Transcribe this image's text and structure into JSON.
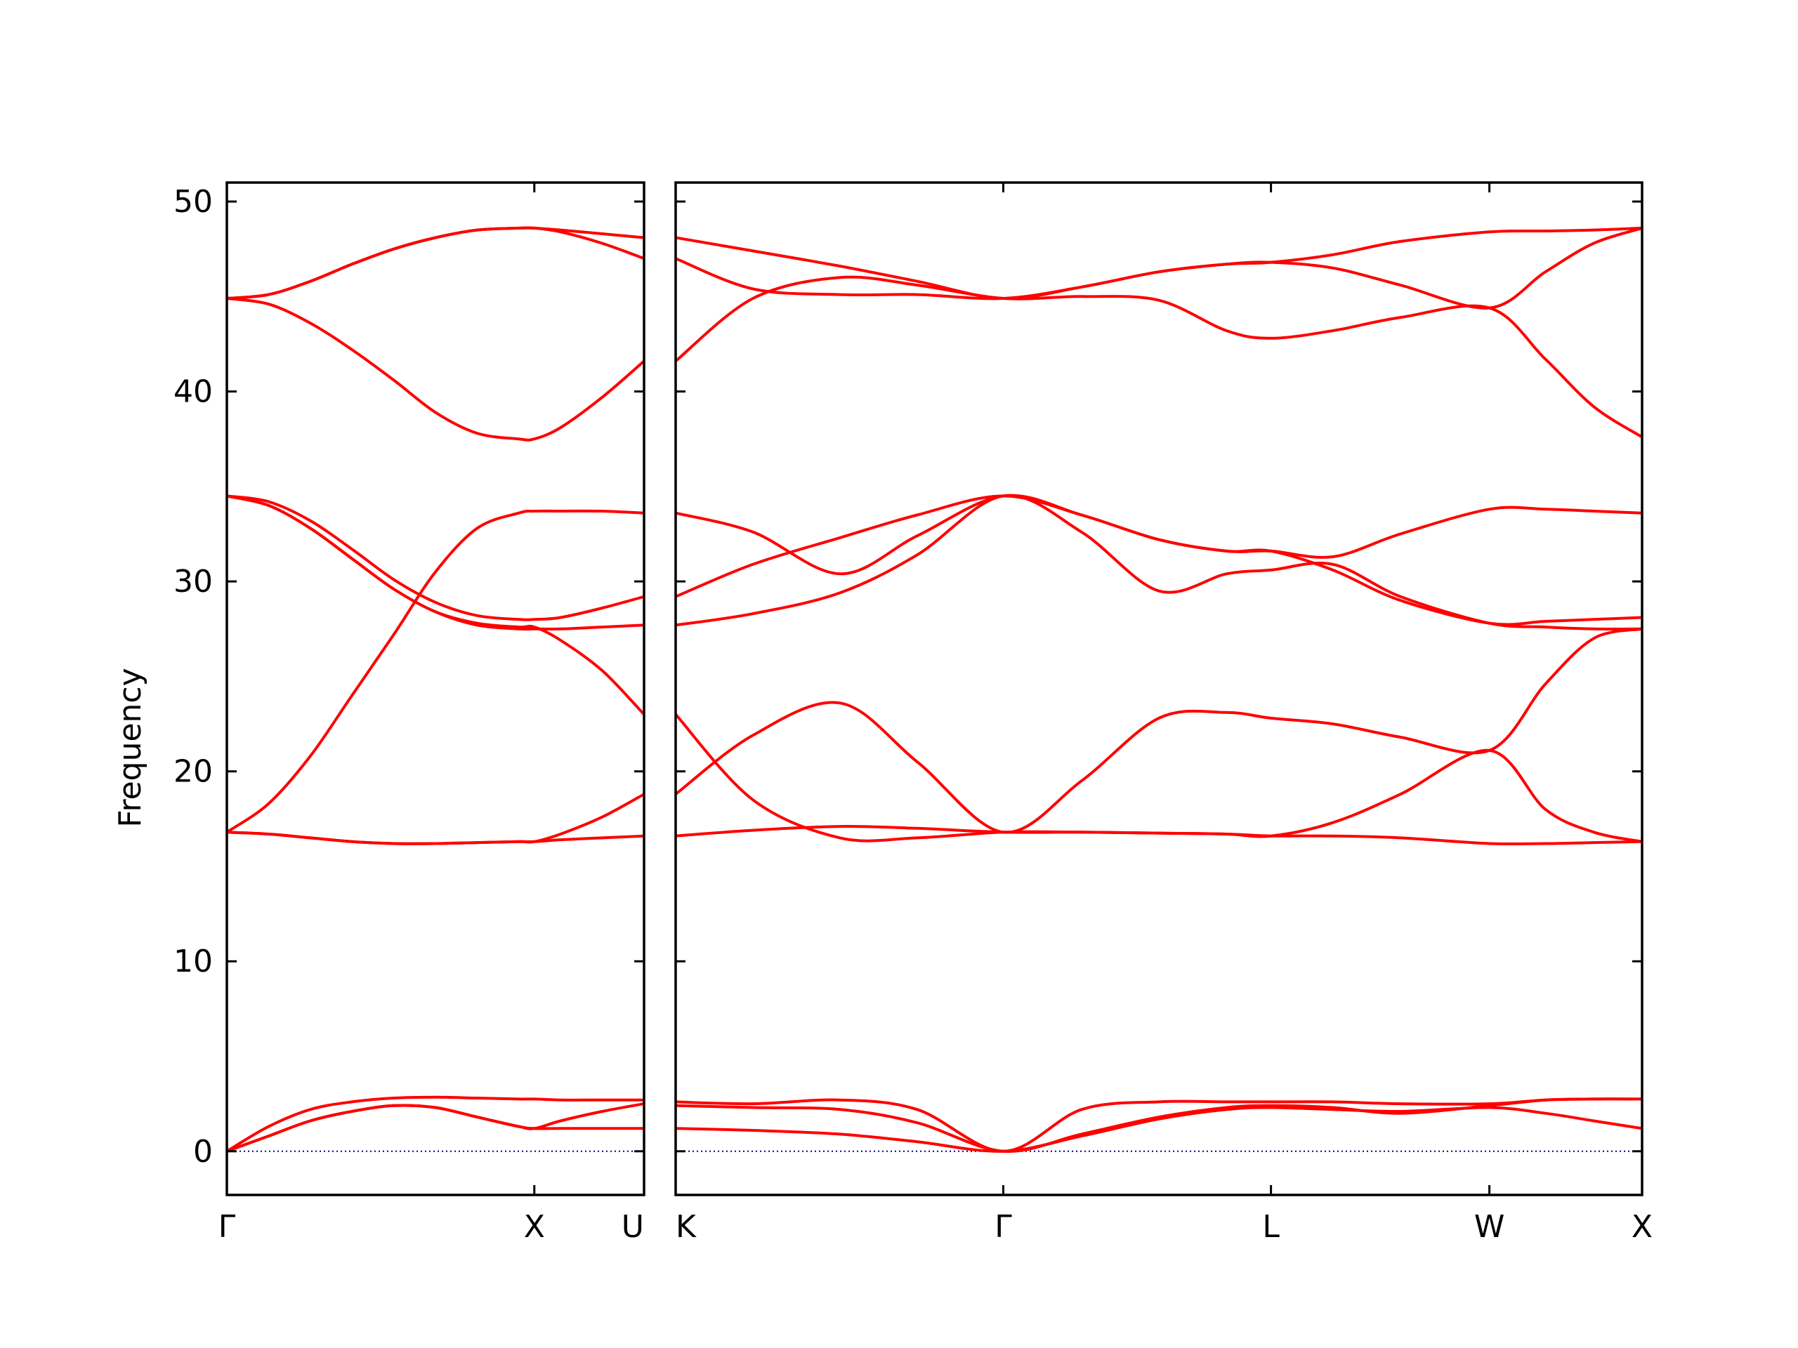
{
  "chart_data": {
    "type": "line",
    "ylabel": "Frequency",
    "ylim": [
      -2.3,
      51.0
    ],
    "yticks": [
      0,
      10,
      20,
      30,
      40,
      50
    ],
    "grid": false,
    "colors": {
      "band": "#ff0000",
      "zero": "#00008b"
    },
    "panels": [
      {
        "xlim": [
          0.0,
          1.0
        ],
        "xticks": [
          {
            "pos": 0.0,
            "label": "Γ"
          },
          {
            "pos": 0.737,
            "label": "X"
          },
          {
            "pos": 1.0,
            "label": "U"
          }
        ],
        "x": [
          0.0,
          0.1,
          0.2,
          0.3,
          0.4,
          0.5,
          0.6,
          0.7,
          0.737,
          0.8,
          0.9,
          1.0
        ],
        "series": [
          {
            "values": [
              0.0,
              0.8,
              1.6,
              2.1,
              2.4,
              2.3,
              1.8,
              1.3,
              1.2,
              1.2,
              1.2,
              1.2
            ]
          },
          {
            "values": [
              0.0,
              1.3,
              2.2,
              2.6,
              2.8,
              2.85,
              2.8,
              2.75,
              2.75,
              2.7,
              2.7,
              2.7
            ]
          },
          {
            "values": [
              0.0,
              0.8,
              1.6,
              2.1,
              2.4,
              2.3,
              1.8,
              1.3,
              1.2,
              1.6,
              2.1,
              2.5
            ]
          },
          {
            "values": [
              16.8,
              16.7,
              16.5,
              16.3,
              16.2,
              16.2,
              16.25,
              16.3,
              16.3,
              16.4,
              16.5,
              16.6
            ]
          },
          {
            "values": [
              16.8,
              16.7,
              16.5,
              16.3,
              16.2,
              16.2,
              16.25,
              16.3,
              16.3,
              16.7,
              17.6,
              18.8
            ]
          },
          {
            "values": [
              16.8,
              18.3,
              20.8,
              24.0,
              27.2,
              30.5,
              32.8,
              33.6,
              33.7,
              33.7,
              33.7,
              33.6
            ]
          },
          {
            "values": [
              34.5,
              34.0,
              32.8,
              31.2,
              29.6,
              28.4,
              27.7,
              27.5,
              27.5,
              27.5,
              27.6,
              27.7
            ]
          },
          {
            "values": [
              34.5,
              34.2,
              33.2,
              31.7,
              30.1,
              28.9,
              28.2,
              28.0,
              28.0,
              28.1,
              28.6,
              29.2
            ]
          },
          {
            "values": [
              34.5,
              34.0,
              32.8,
              31.2,
              29.6,
              28.4,
              27.8,
              27.6,
              27.6,
              26.9,
              25.3,
              23.0
            ]
          },
          {
            "values": [
              44.9,
              44.6,
              43.6,
              42.2,
              40.6,
              38.9,
              37.8,
              37.5,
              37.5,
              38.1,
              39.7,
              41.6
            ]
          },
          {
            "values": [
              44.9,
              45.1,
              45.8,
              46.7,
              47.5,
              48.1,
              48.5,
              48.6,
              48.6,
              48.4,
              47.8,
              47.0
            ]
          },
          {
            "values": [
              44.9,
              45.1,
              45.8,
              46.7,
              47.5,
              48.1,
              48.5,
              48.6,
              48.6,
              48.5,
              48.3,
              48.1
            ]
          }
        ]
      },
      {
        "xlim": [
          0.0,
          1.0
        ],
        "xticks": [
          {
            "pos": 0.0,
            "label": "K"
          },
          {
            "pos": 0.339,
            "label": "Γ"
          },
          {
            "pos": 0.616,
            "label": "L"
          },
          {
            "pos": 0.842,
            "label": "W"
          },
          {
            "pos": 1.0,
            "label": "X"
          }
        ],
        "x": [
          0.0,
          0.08,
          0.17,
          0.25,
          0.339,
          0.42,
          0.5,
          0.57,
          0.616,
          0.68,
          0.75,
          0.842,
          0.9,
          0.95,
          1.0
        ],
        "series": [
          {
            "values": [
              1.2,
              1.1,
              0.9,
              0.5,
              0.0,
              0.8,
              1.7,
              2.2,
              2.3,
              2.2,
              2.1,
              2.3,
              2.0,
              1.6,
              1.2
            ]
          },
          {
            "values": [
              2.4,
              2.3,
              2.2,
              1.5,
              0.0,
              0.9,
              1.8,
              2.3,
              2.4,
              2.3,
              2.0,
              2.4,
              2.7,
              2.75,
              2.75
            ]
          },
          {
            "values": [
              2.6,
              2.5,
              2.7,
              2.2,
              0.0,
              2.2,
              2.6,
              2.6,
              2.6,
              2.6,
              2.5,
              2.5,
              2.7,
              2.75,
              2.75
            ]
          },
          {
            "values": [
              16.6,
              16.9,
              17.1,
              17.0,
              16.8,
              16.8,
              16.75,
              16.7,
              16.6,
              16.6,
              16.5,
              16.2,
              16.2,
              16.25,
              16.3
            ]
          },
          {
            "values": [
              23.0,
              18.5,
              16.5,
              16.5,
              16.8,
              16.8,
              16.75,
              16.7,
              16.6,
              17.3,
              18.8,
              21.1,
              18.0,
              16.8,
              16.3
            ]
          },
          {
            "values": [
              18.8,
              21.9,
              23.6,
              20.5,
              16.8,
              19.5,
              22.8,
              23.1,
              22.8,
              22.5,
              21.8,
              21.1,
              24.6,
              27.0,
              27.5
            ]
          },
          {
            "values": [
              27.7,
              28.3,
              29.4,
              31.4,
              34.5,
              32.6,
              29.5,
              30.4,
              30.6,
              30.9,
              29.2,
              27.8,
              27.6,
              27.5,
              27.5
            ]
          },
          {
            "values": [
              29.2,
              30.9,
              32.3,
              33.5,
              34.5,
              33.5,
              32.2,
              31.6,
              31.6,
              30.6,
              29.0,
              27.8,
              27.9,
              28.0,
              28.1
            ]
          },
          {
            "values": [
              33.6,
              32.6,
              30.4,
              32.4,
              34.5,
              33.5,
              32.2,
              31.6,
              31.6,
              31.3,
              32.5,
              33.8,
              33.8,
              33.7,
              33.6
            ]
          },
          {
            "values": [
              41.6,
              44.9,
              46.0,
              45.6,
              44.9,
              45.0,
              44.8,
              43.2,
              42.8,
              43.2,
              43.9,
              44.4,
              41.7,
              39.2,
              37.6
            ]
          },
          {
            "values": [
              47.0,
              45.4,
              45.1,
              45.1,
              44.9,
              45.5,
              46.3,
              46.7,
              46.8,
              46.5,
              45.6,
              44.4,
              46.3,
              47.8,
              48.6
            ]
          },
          {
            "values": [
              48.1,
              47.4,
              46.6,
              45.8,
              44.9,
              45.5,
              46.3,
              46.7,
              46.8,
              47.2,
              47.9,
              48.4,
              48.45,
              48.5,
              48.6
            ]
          }
        ]
      }
    ]
  }
}
